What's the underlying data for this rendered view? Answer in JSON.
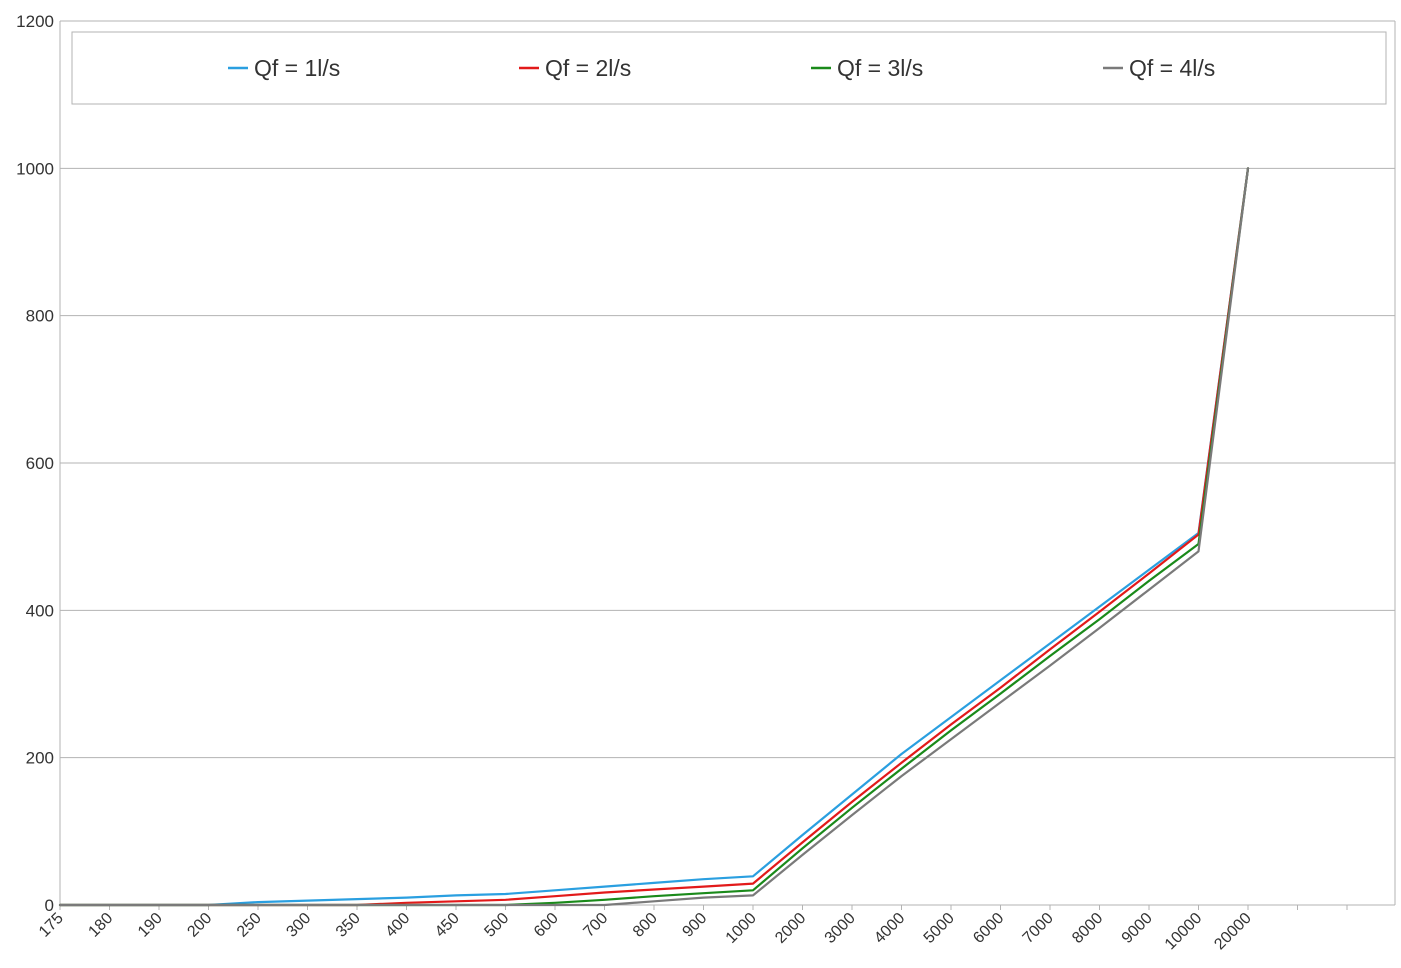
{
  "chart_data": {
    "type": "line",
    "title": "",
    "xlabel": "",
    "ylabel": "",
    "categories": [
      "175",
      "180",
      "190",
      "200",
      "250",
      "300",
      "350",
      "400",
      "450",
      "500",
      "600",
      "700",
      "800",
      "900",
      "1000",
      "2000",
      "3000",
      "4000",
      "5000",
      "6000",
      "7000",
      "8000",
      "9000",
      "10000",
      "20000"
    ],
    "ylim": [
      0,
      1200
    ],
    "y_ticks": [
      0,
      200,
      400,
      600,
      800,
      1000,
      1200
    ],
    "grid": true,
    "legend_position": "top",
    "series": [
      {
        "name": "Qf = 1l/s",
        "color": "#2a9fe0",
        "values": [
          0,
          0,
          0,
          0,
          4,
          6,
          8,
          10,
          13,
          15,
          20,
          25,
          30,
          35,
          39,
          95,
          150,
          205,
          255,
          305,
          355,
          405,
          455,
          505,
          1000
        ]
      },
      {
        "name": "Qf = 2l/s",
        "color": "#e21a1a",
        "values": [
          0,
          0,
          0,
          0,
          0,
          0,
          0,
          3,
          5,
          7,
          12,
          17,
          21,
          25,
          29,
          85,
          140,
          193,
          245,
          295,
          347,
          398,
          450,
          503,
          1000
        ]
      },
      {
        "name": "Qf = 3l/s",
        "color": "#1a8a1a",
        "values": [
          0,
          0,
          0,
          0,
          0,
          0,
          0,
          0,
          0,
          0,
          3,
          7,
          12,
          16,
          20,
          77,
          132,
          185,
          237,
          287,
          338,
          388,
          440,
          490,
          1000
        ]
      },
      {
        "name": "Qf = 4l/s",
        "color": "#7a7a7a",
        "values": [
          0,
          0,
          0,
          0,
          0,
          0,
          0,
          0,
          0,
          0,
          0,
          0,
          5,
          10,
          13,
          68,
          122,
          175,
          225,
          275,
          325,
          376,
          428,
          480,
          1000
        ]
      }
    ]
  }
}
